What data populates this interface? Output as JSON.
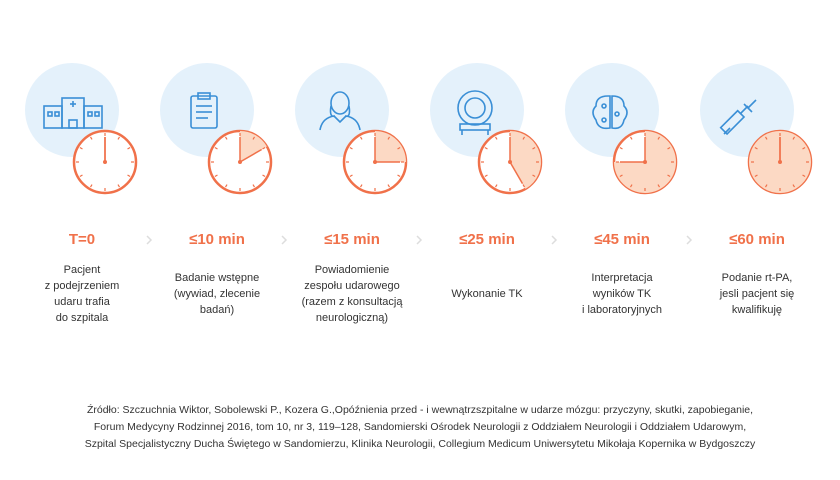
{
  "steps": [
    {
      "time": "T=0",
      "minutes": 0,
      "lines": [
        "Pacjent",
        "z podejrzeniem",
        "udaru trafia",
        "do szpitala"
      ]
    },
    {
      "time": "≤10 min",
      "minutes": 10,
      "lines": [
        "Badanie wstępne",
        "(wywiad, zlecenie",
        "badań)"
      ]
    },
    {
      "time": "≤15 min",
      "minutes": 15,
      "lines": [
        "Powiadomienie",
        "zespołu udarowego",
        "(razem z konsultacją",
        "neurologiczną)"
      ]
    },
    {
      "time": "≤25 min",
      "minutes": 25,
      "lines": [
        "Wykonanie TK"
      ]
    },
    {
      "time": "≤45 min",
      "minutes": 45,
      "lines": [
        "Interpretacja",
        "wyników TK",
        "i laboratoryjnych"
      ]
    },
    {
      "time": "≤60 min",
      "minutes": 60,
      "lines": [
        "Podanie rt-PA,",
        "jesli pacjent się",
        "kwalifikuję"
      ]
    }
  ],
  "source": [
    "Źródło: Szczuchnia Wiktor, Sobolewski P., Kozera G.,Opóźnienia przed - i wewnątrzszpitalne w udarze mózgu: przyczyny, skutki, zapobieganie,",
    "Forum Medycyny Rodzinnej 2016, tom 10, nr 3, 119–128, Sandomierski Ośrodek Neurologii z Oddziałem Neurologii i Oddziałem Udarowym,",
    "Szpital Specjalistyczny Ducha Świętego w Sandomierzu, Klinika Neurologii, Collegium Medicum Uniwersytetu Mikołaja Kopernika w Bydgoszczy"
  ]
}
